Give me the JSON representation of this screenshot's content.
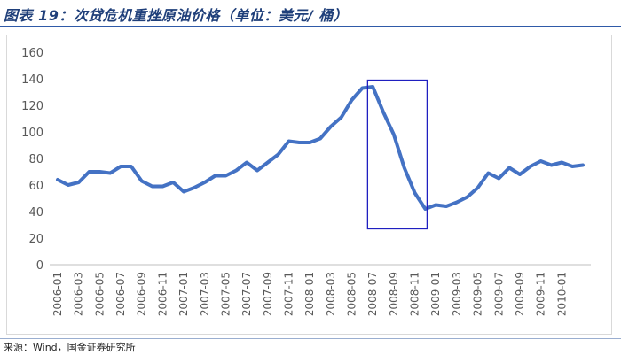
{
  "figure": {
    "title": "图表 19：次贷危机重挫原油价格（单位：美元/ 桶）",
    "source": "来源：Wind，国金证券研究所"
  },
  "colors": {
    "line": "#4472c4",
    "highlight_box": "#1f1fc0",
    "title": "#1f3f7a",
    "rule": "#2f5aa8",
    "axis_text": "#595959"
  },
  "chart_data": {
    "type": "line",
    "title": "",
    "xlabel": "",
    "ylabel": "",
    "ylim": [
      0,
      160
    ],
    "yticks": [
      0,
      20,
      40,
      60,
      80,
      100,
      120,
      140,
      160
    ],
    "grid": false,
    "legend": "none",
    "x": [
      "2006-01",
      "2006-02",
      "2006-03",
      "2006-04",
      "2006-05",
      "2006-06",
      "2006-07",
      "2006-08",
      "2006-09",
      "2006-10",
      "2006-11",
      "2006-12",
      "2007-01",
      "2007-02",
      "2007-03",
      "2007-04",
      "2007-05",
      "2007-06",
      "2007-07",
      "2007-08",
      "2007-09",
      "2007-10",
      "2007-11",
      "2007-12",
      "2008-01",
      "2008-02",
      "2008-03",
      "2008-04",
      "2008-05",
      "2008-06",
      "2008-07",
      "2008-08",
      "2008-09",
      "2008-10",
      "2008-11",
      "2008-12",
      "2009-01",
      "2009-02",
      "2009-03",
      "2009-04",
      "2009-05",
      "2009-06",
      "2009-07",
      "2009-08",
      "2009-09",
      "2009-10",
      "2009-11",
      "2009-12",
      "2010-01",
      "2010-02",
      "2010-03"
    ],
    "xticks": [
      "2006-01",
      "2006-03",
      "2006-05",
      "2006-07",
      "2006-09",
      "2006-11",
      "2007-01",
      "2007-03",
      "2007-05",
      "2007-07",
      "2007-09",
      "2007-11",
      "2008-01",
      "2008-03",
      "2008-05",
      "2008-07",
      "2008-09",
      "2008-11",
      "2009-01",
      "2009-03",
      "2009-05",
      "2009-07",
      "2009-09",
      "2009-11",
      "2010-01"
    ],
    "series": [
      {
        "name": "",
        "values": [
          64,
          60,
          62,
          70,
          70,
          69,
          74,
          74,
          63,
          59,
          59,
          62,
          55,
          58,
          62,
          67,
          67,
          71,
          77,
          71,
          77,
          83,
          93,
          92,
          92,
          95,
          104,
          111,
          124,
          133,
          134,
          115,
          98,
          73,
          54,
          42,
          45,
          44,
          47,
          51,
          58,
          69,
          65,
          73,
          68,
          74,
          78,
          75,
          77,
          74,
          75
        ]
      }
    ],
    "annotations": [
      {
        "type": "box",
        "x_from": "2008-06",
        "x_to": "2008-12",
        "y_from": 27,
        "y_to": 139
      }
    ]
  }
}
